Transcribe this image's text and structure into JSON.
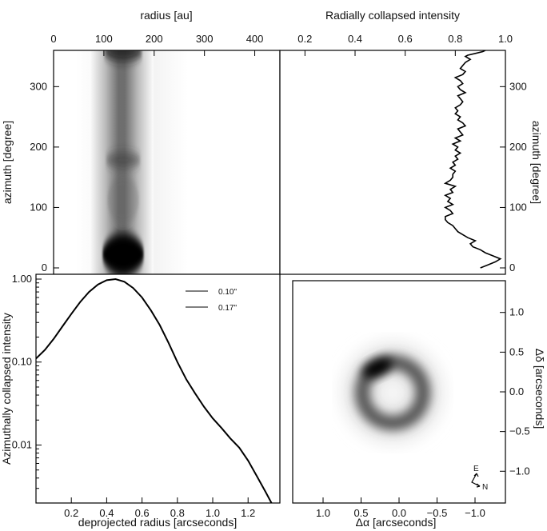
{
  "chart_data": [
    {
      "panel": "polar-map",
      "type": "heatmap",
      "xlabel": "radius [au]",
      "ylabel": "azimuth [degree]",
      "xlim": [
        0,
        450
      ],
      "ylim": [
        0,
        360
      ],
      "xticks": [
        "0",
        "100",
        "200",
        "300",
        "400"
      ],
      "yticks": [
        "0",
        "100",
        "200",
        "300"
      ],
      "ring_radius_au": 140,
      "features": [
        {
          "azimuth": 15,
          "intensity": 1.0
        },
        {
          "azimuth": 180,
          "intensity": 0.55
        },
        {
          "azimuth": 355,
          "intensity": 0.8
        }
      ]
    },
    {
      "panel": "radial-collapse",
      "type": "line",
      "title": "Radially collapsed intensity",
      "ylabel": "azimuth [degree]",
      "xlim": [
        0.1,
        1.0
      ],
      "ylim": [
        0,
        360
      ],
      "xticks": [
        "0.2",
        "0.4",
        "0.6",
        "0.8",
        "1.0"
      ],
      "yticks": [
        "0",
        "100",
        "200",
        "300"
      ],
      "x": [
        0.9,
        0.93,
        0.96,
        0.98,
        0.95,
        0.92,
        0.9,
        0.87,
        0.86,
        0.88,
        0.85,
        0.83,
        0.81,
        0.8,
        0.79,
        0.77,
        0.76,
        0.76,
        0.79,
        0.78,
        0.76,
        0.79,
        0.77,
        0.78,
        0.76,
        0.79,
        0.78,
        0.8,
        0.76,
        0.78,
        0.79,
        0.79,
        0.8,
        0.78,
        0.8,
        0.79,
        0.81,
        0.8,
        0.82,
        0.8,
        0.81,
        0.79,
        0.82,
        0.8,
        0.83,
        0.82,
        0.81,
        0.84,
        0.83,
        0.81,
        0.82,
        0.8,
        0.81,
        0.8,
        0.82,
        0.83,
        0.82,
        0.81,
        0.84,
        0.82,
        0.81,
        0.83,
        0.82,
        0.8,
        0.83,
        0.84,
        0.82,
        0.83,
        0.84,
        0.86,
        0.84,
        0.85,
        0.88,
        0.91,
        0.92
      ],
      "y": [
        0,
        5,
        10,
        15,
        20,
        25,
        30,
        35,
        40,
        45,
        50,
        55,
        60,
        65,
        70,
        75,
        80,
        85,
        90,
        95,
        100,
        105,
        110,
        115,
        120,
        125,
        130,
        135,
        140,
        145,
        150,
        155,
        160,
        165,
        170,
        175,
        180,
        185,
        190,
        195,
        200,
        205,
        210,
        215,
        220,
        225,
        230,
        235,
        240,
        245,
        250,
        255,
        260,
        265,
        270,
        275,
        280,
        285,
        290,
        295,
        300,
        305,
        310,
        315,
        320,
        325,
        330,
        335,
        340,
        345,
        350,
        352,
        355,
        358,
        360
      ]
    },
    {
      "panel": "azimuthal-collapse",
      "type": "line",
      "xlabel": "deprojected radius [arcseconds]",
      "ylabel": "Azimuthally collapsed intensity",
      "yscale": "log",
      "xlim": [
        0,
        1.38
      ],
      "ylim": [
        0.002,
        1.0
      ],
      "xticks": [
        "0.2",
        "0.4",
        "0.6",
        "0.8",
        "1.0",
        "1.2"
      ],
      "yticks": [
        "0.01",
        "0.10",
        "1.00"
      ],
      "legend": [
        "0.10\"",
        "0.17\""
      ],
      "legend_position": "top-right",
      "x": [
        0.0,
        0.05,
        0.1,
        0.15,
        0.2,
        0.25,
        0.3,
        0.35,
        0.4,
        0.45,
        0.5,
        0.55,
        0.6,
        0.65,
        0.7,
        0.75,
        0.8,
        0.85,
        0.9,
        0.95,
        1.0,
        1.05,
        1.1,
        1.15,
        1.2,
        1.25,
        1.3,
        1.35
      ],
      "y": [
        0.11,
        0.14,
        0.19,
        0.27,
        0.38,
        0.53,
        0.7,
        0.86,
        0.97,
        1.0,
        0.93,
        0.78,
        0.6,
        0.42,
        0.28,
        0.17,
        0.1,
        0.062,
        0.042,
        0.029,
        0.021,
        0.016,
        0.012,
        0.0093,
        0.0065,
        0.0042,
        0.0027,
        0.0017
      ]
    },
    {
      "panel": "sky-image",
      "type": "heatmap",
      "xlabel": "Δα  [arcseconds]",
      "ylabel": "Δδ  [arcseconds]",
      "xlim": [
        1.4,
        -1.4
      ],
      "ylim": [
        -1.4,
        1.4
      ],
      "xticks": [
        "1.0",
        "0.5",
        "0.0",
        "−0.5",
        "−1.0"
      ],
      "yticks": [
        "−1.0",
        "−0.5",
        "0.0",
        "0.5",
        "1.0"
      ],
      "ring_radius_arcsec": 0.42,
      "compass": {
        "east": "E",
        "north": "N"
      }
    }
  ],
  "figure": {
    "top_xlabel_left": "radius [au]",
    "top_xlabel_right": "Radially collapsed intensity"
  }
}
